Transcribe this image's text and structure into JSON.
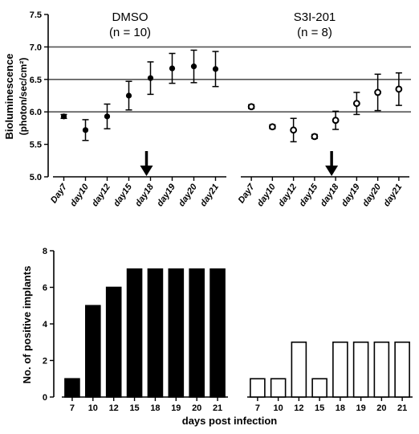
{
  "chart_data": [
    {
      "type": "scatter",
      "ylabel_line1": "Bioluminescence",
      "ylabel_line2": "(photon/sec/cm²)",
      "ylim": [
        5.0,
        7.5
      ],
      "yticks": [
        "5.0",
        "5.5",
        "6.0",
        "6.5",
        "7.0",
        "7.5"
      ],
      "hlines": [
        6.0,
        6.5,
        7.0
      ],
      "groups": [
        {
          "name": "DMSO",
          "n_label": "(n = 10)",
          "marker": "filled",
          "arrow_at": "day18",
          "categories": [
            "Day7",
            "day10",
            "day12",
            "day15",
            "day18",
            "day19",
            "day20",
            "day21"
          ],
          "values": [
            5.93,
            5.72,
            5.93,
            6.25,
            6.52,
            6.67,
            6.7,
            6.66
          ],
          "errors": [
            0.03,
            0.16,
            0.19,
            0.22,
            0.25,
            0.23,
            0.25,
            0.27
          ]
        },
        {
          "name": "S3I-201",
          "n_label": "(n = 8)",
          "marker": "open",
          "arrow_at": "day18",
          "categories": [
            "Day7",
            "day10",
            "day12",
            "day15",
            "day18",
            "day19",
            "day20",
            "day21"
          ],
          "values": [
            6.08,
            5.77,
            5.72,
            5.62,
            5.87,
            6.13,
            6.3,
            6.35
          ],
          "errors": [
            0.03,
            0.03,
            0.18,
            0.03,
            0.14,
            0.17,
            0.28,
            0.25
          ]
        }
      ]
    },
    {
      "type": "bar",
      "ylabel": "No. of positive implants",
      "xlabel": "days post infection",
      "ylim": [
        0,
        8
      ],
      "yticks": [
        "0",
        "2",
        "4",
        "6",
        "8"
      ],
      "groups": [
        {
          "fill": "#000000",
          "categories": [
            "7",
            "10",
            "12",
            "15",
            "18",
            "19",
            "20",
            "21"
          ],
          "values": [
            1,
            5,
            6,
            7,
            7,
            7,
            7,
            7
          ]
        },
        {
          "fill": "#ffffff",
          "categories": [
            "7",
            "10",
            "12",
            "15",
            "18",
            "19",
            "20",
            "21"
          ],
          "values": [
            1,
            1,
            3,
            1,
            3,
            3,
            3,
            3
          ]
        }
      ]
    }
  ]
}
